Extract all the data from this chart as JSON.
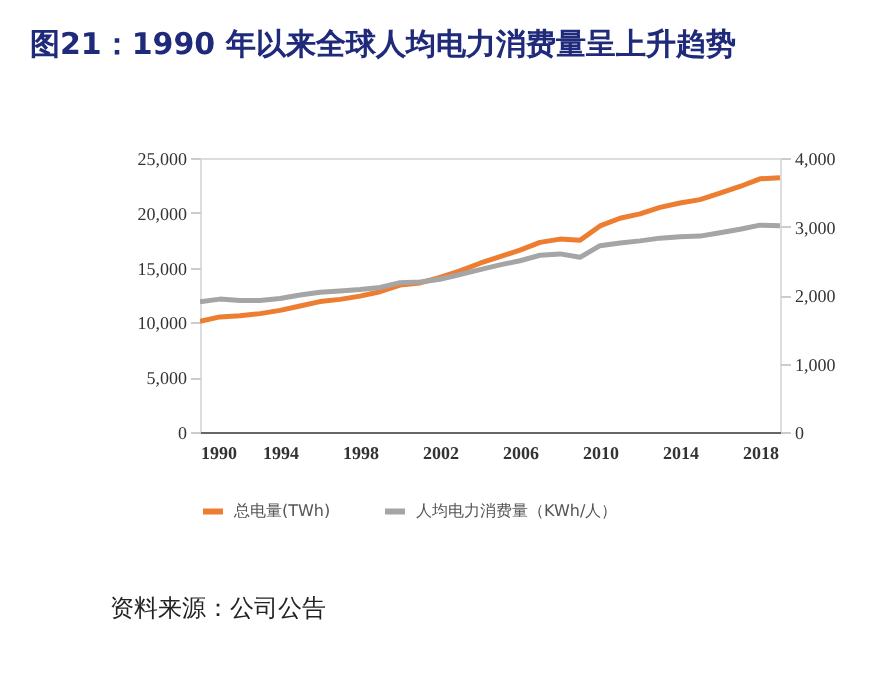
{
  "chart_data": {
    "type": "line",
    "title": "图21：1990 年以来全球人均电力消费量呈上升趋势",
    "x": [
      1990,
      1991,
      1992,
      1993,
      1994,
      1995,
      1996,
      1997,
      1998,
      1999,
      2000,
      2001,
      2002,
      2003,
      2004,
      2005,
      2006,
      2007,
      2008,
      2009,
      2010,
      2011,
      2012,
      2013,
      2014,
      2015,
      2016,
      2017,
      2018,
      2019
    ],
    "series": [
      {
        "name": "总电量(TWh)",
        "color": "#ed7d31",
        "values": [
          10100,
          10500,
          10600,
          10800,
          11100,
          11500,
          11900,
          12100,
          12400,
          12800,
          13400,
          13600,
          14100,
          14700,
          15400,
          16000,
          16600,
          17300,
          17600,
          17500,
          18800,
          19500,
          19900,
          20500,
          20900,
          21200,
          21800,
          22400,
          23100,
          23200
        ]
      },
      {
        "name": "人均电力消费量（KWh/人）",
        "color": "#a5a5a5",
        "axis": "y2",
        "values": [
          1900,
          1940,
          1920,
          1920,
          1950,
          2000,
          2040,
          2060,
          2080,
          2110,
          2180,
          2190,
          2230,
          2300,
          2370,
          2440,
          2500,
          2580,
          2600,
          2550,
          2720,
          2760,
          2790,
          2830,
          2850,
          2860,
          2910,
          2960,
          3020,
          3010
        ]
      }
    ],
    "xlim": [
      1990,
      2019
    ],
    "xticks": [
      1990,
      1994,
      1998,
      2002,
      2006,
      2010,
      2014,
      2018
    ],
    "ylim": [
      0,
      25000
    ],
    "yticks": [
      0,
      {
        "value": 5000,
        "label": "5,000"
      },
      {
        "value": 10000,
        "label": "10,000"
      },
      {
        "value": 15000,
        "label": "15,000"
      },
      {
        "value": 20000,
        "label": "20,000"
      },
      {
        "value": 25000,
        "label": "25,000"
      }
    ],
    "y2lim": [
      0,
      4000
    ],
    "y2ticks": [
      0,
      {
        "value": 1000,
        "label": "1,000"
      },
      {
        "value": 2000,
        "label": "2,000"
      },
      {
        "value": 3000,
        "label": "3,000"
      },
      {
        "value": 4000,
        "label": "4,000"
      }
    ],
    "grid": false,
    "legend": "bottom",
    "line_style": "solid",
    "marker": "none",
    "annotations": [
      "资料来源：公司公告"
    ]
  }
}
